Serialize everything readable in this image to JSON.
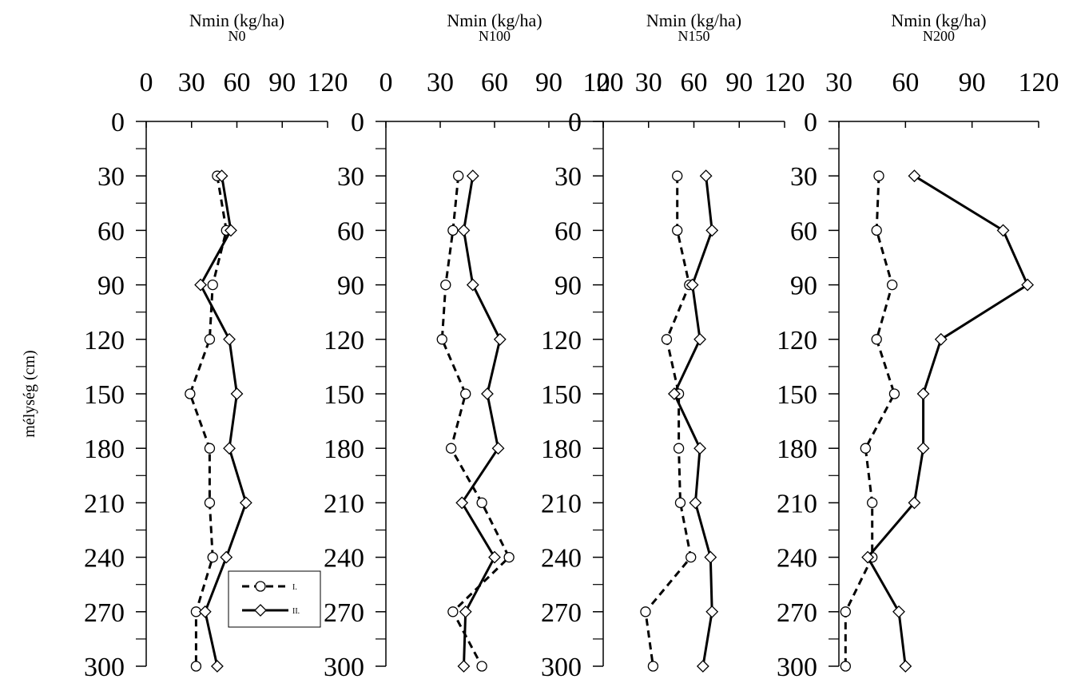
{
  "ylabel": "mélység (cm)",
  "legend": {
    "series_labels": [
      "I.",
      "II."
    ]
  },
  "chart_data": [
    {
      "type": "line",
      "title": "Nmin (kg/ha)",
      "subtitle": "N0",
      "xlim": [
        0,
        120
      ],
      "xticks": [
        0,
        30,
        60,
        90,
        120
      ],
      "ylim": [
        0,
        300
      ],
      "yticks": [
        0,
        30,
        60,
        90,
        120,
        150,
        180,
        210,
        240,
        270,
        300
      ],
      "y_inverted": true,
      "y": [
        30,
        60,
        90,
        120,
        150,
        180,
        210,
        240,
        270,
        300
      ],
      "series": [
        {
          "name": "I.",
          "style": "dashed",
          "marker": "circle",
          "values": [
            47,
            53,
            44,
            42,
            29,
            42,
            42,
            44,
            33,
            33
          ]
        },
        {
          "name": "II.",
          "style": "solid",
          "marker": "diamond",
          "values": [
            50,
            56,
            36,
            55,
            60,
            55,
            66,
            53,
            39,
            47
          ]
        }
      ]
    },
    {
      "type": "line",
      "title": "Nmin (kg/ha)",
      "subtitle": "N100",
      "xlim": [
        0,
        120
      ],
      "xticks": [
        0,
        30,
        60,
        90,
        120
      ],
      "ylim": [
        0,
        300
      ],
      "yticks": [
        0,
        30,
        60,
        90,
        120,
        150,
        180,
        210,
        240,
        270,
        300
      ],
      "y_inverted": true,
      "y": [
        30,
        60,
        90,
        120,
        150,
        180,
        210,
        240,
        270,
        300
      ],
      "series": [
        {
          "name": "I.",
          "style": "dashed",
          "marker": "circle",
          "values": [
            40,
            37,
            33,
            31,
            44,
            36,
            53,
            68,
            37,
            53
          ]
        },
        {
          "name": "II.",
          "style": "solid",
          "marker": "diamond",
          "values": [
            48,
            43,
            48,
            63,
            56,
            62,
            42,
            60,
            44,
            43
          ]
        }
      ]
    },
    {
      "type": "line",
      "title": "Nmin (kg/ha)",
      "subtitle": "N150",
      "xlim": [
        0,
        120
      ],
      "xticks": [
        0,
        30,
        60,
        90,
        120
      ],
      "ylim": [
        0,
        300
      ],
      "yticks": [
        0,
        30,
        60,
        90,
        120,
        150,
        180,
        210,
        240,
        270,
        300
      ],
      "y_inverted": true,
      "y": [
        30,
        60,
        90,
        120,
        150,
        180,
        210,
        240,
        270,
        300
      ],
      "series": [
        {
          "name": "I.",
          "style": "dashed",
          "marker": "circle",
          "values": [
            49,
            49,
            57,
            42,
            50,
            50,
            51,
            58,
            28,
            33
          ]
        },
        {
          "name": "II.",
          "style": "solid",
          "marker": "diamond",
          "values": [
            68,
            72,
            59,
            64,
            47,
            64,
            61,
            71,
            72,
            66
          ]
        }
      ]
    },
    {
      "type": "line",
      "title": "Nmin (kg/ha)",
      "subtitle": "N200",
      "xlim": [
        30,
        120
      ],
      "xticks": [
        30,
        60,
        90,
        120
      ],
      "ylim": [
        0,
        300
      ],
      "yticks": [
        0,
        30,
        60,
        90,
        120,
        150,
        180,
        210,
        240,
        270,
        300
      ],
      "y_inverted": true,
      "y": [
        30,
        60,
        90,
        120,
        150,
        180,
        210,
        240,
        270,
        300
      ],
      "series": [
        {
          "name": "I.",
          "style": "dashed",
          "marker": "circle",
          "values": [
            48,
            47,
            54,
            47,
            55,
            42,
            45,
            45,
            33,
            33
          ]
        },
        {
          "name": "II.",
          "style": "solid",
          "marker": "diamond",
          "values": [
            64,
            104,
            115,
            76,
            68,
            68,
            64,
            43,
            57,
            60
          ]
        }
      ]
    }
  ]
}
